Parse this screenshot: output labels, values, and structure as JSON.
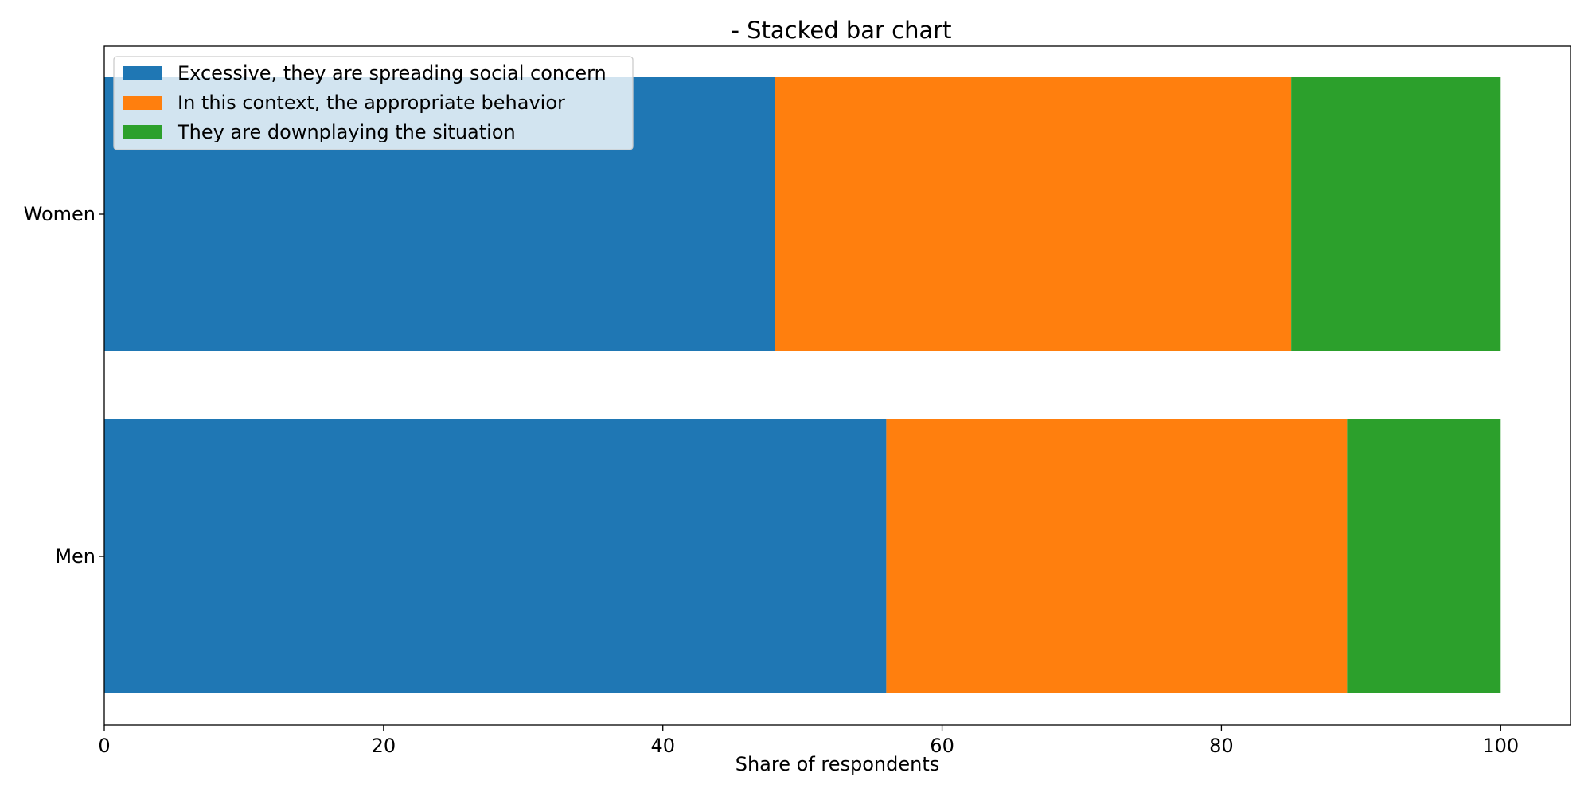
{
  "chart_data": {
    "type": "bar",
    "orientation": "horizontal",
    "stacked": true,
    "title": "- Stacked bar chart",
    "xlabel": "Share of respondents",
    "ylabel": "",
    "categories": [
      "Women",
      "Men"
    ],
    "xlim": [
      0,
      105
    ],
    "xticks": [
      0,
      20,
      40,
      60,
      80,
      100
    ],
    "grid": false,
    "legend_position": "upper left",
    "series": [
      {
        "name": "Excessive, they are spreading social concern",
        "values": [
          48,
          56
        ],
        "color": "#1f77b4"
      },
      {
        "name": "In this context, the appropriate behavior",
        "values": [
          37,
          33
        ],
        "color": "#ff7f0e"
      },
      {
        "name": "They are downplaying the situation",
        "values": [
          15,
          11
        ],
        "color": "#2ca02c"
      }
    ]
  }
}
